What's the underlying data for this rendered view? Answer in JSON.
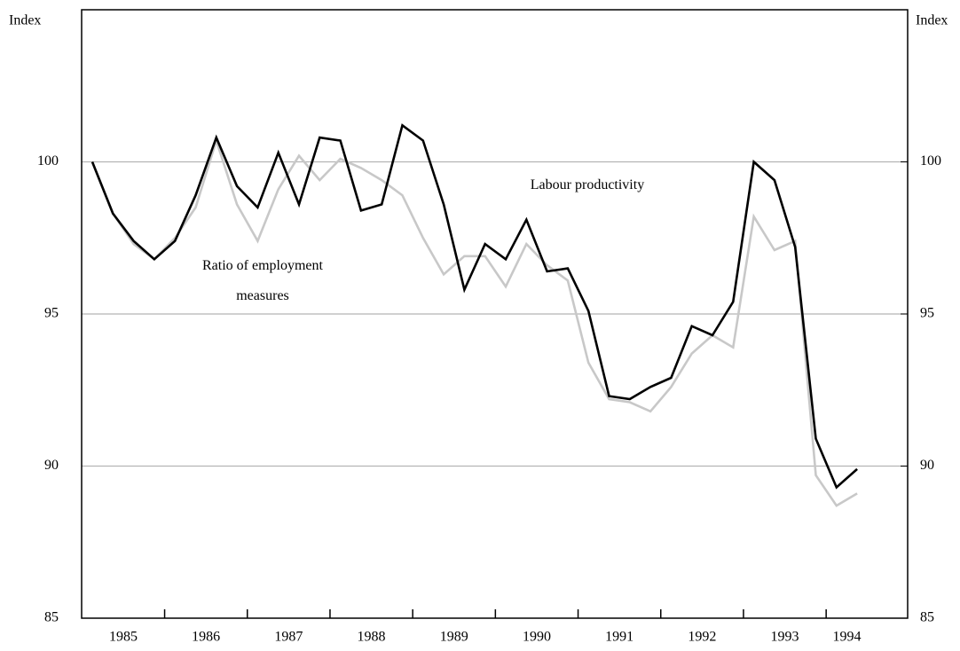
{
  "chart_data": {
    "type": "line",
    "y_label": "Index",
    "y2_label": "Index",
    "categories": [
      null,
      "1985",
      null,
      null,
      null,
      "1986",
      null,
      null,
      null,
      "1987",
      null,
      null,
      null,
      "1988",
      null,
      null,
      null,
      "1989",
      null,
      null,
      null,
      "1990",
      null,
      null,
      null,
      "1991",
      null,
      null,
      null,
      "1992",
      null,
      null,
      null,
      "1993",
      null,
      null,
      null,
      "1994"
    ],
    "series": [
      {
        "name": "Ratio of employment measures",
        "color": "#c8c8c8",
        "values": [
          100.0,
          98.3,
          97.3,
          96.8,
          97.5,
          98.5,
          100.7,
          98.6,
          97.4,
          99.1,
          100.2,
          99.4,
          100.1,
          99.8,
          99.4,
          98.9,
          97.5,
          96.3,
          96.9,
          96.9,
          95.9,
          97.3,
          96.6,
          96.1,
          93.4,
          92.2,
          92.1,
          91.8,
          92.6,
          93.7,
          94.3,
          93.9,
          98.2,
          97.1,
          97.4,
          89.7,
          88.7,
          89.1
        ]
      },
      {
        "name": "Labour productivity",
        "color": "#000000",
        "values": [
          100.0,
          98.3,
          97.4,
          96.8,
          97.4,
          98.9,
          100.8,
          99.2,
          98.5,
          100.3,
          98.6,
          100.8,
          100.7,
          98.4,
          98.6,
          101.2,
          100.7,
          98.6,
          95.8,
          97.3,
          96.8,
          98.1,
          96.4,
          96.5,
          95.1,
          92.3,
          92.2,
          92.6,
          92.9,
          94.6,
          94.3,
          95.4,
          100.0,
          99.4,
          97.2,
          90.9,
          89.3,
          89.9
        ]
      }
    ],
    "ylim": [
      85,
      105
    ],
    "yticks": [
      85,
      90,
      95,
      100
    ],
    "y2lim": [
      85,
      105
    ],
    "y2ticks": [
      85,
      90,
      95,
      100
    ],
    "grid": true
  }
}
